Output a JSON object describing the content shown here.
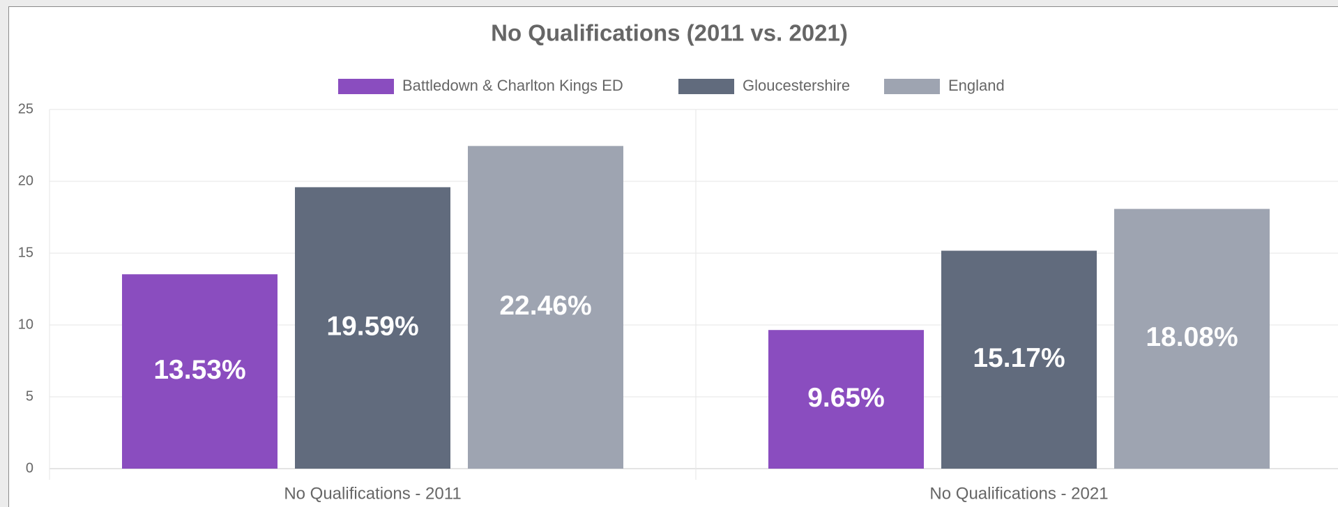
{
  "chart_data": {
    "type": "bar",
    "title": "No Qualifications (2011 vs. 2021)",
    "categories": [
      "No Qualifications - 2011",
      "No Qualifications - 2021"
    ],
    "series": [
      {
        "name": "Battledown & Charlton Kings ED",
        "color": "#8a4dbf",
        "values": [
          13.53,
          9.65
        ],
        "value_labels": [
          "13.53%",
          "9.65%"
        ]
      },
      {
        "name": "Gloucestershire",
        "color": "#616b7d",
        "values": [
          19.59,
          15.17
        ],
        "value_labels": [
          "19.59%",
          "15.17%"
        ]
      },
      {
        "name": "England",
        "color": "#9ea4b1",
        "values": [
          22.46,
          18.08
        ],
        "value_labels": [
          "22.46%",
          "18.08%"
        ]
      }
    ],
    "ylim": [
      0,
      25
    ],
    "yticks": [
      0,
      5,
      10,
      15,
      20,
      25
    ],
    "grid": true,
    "legend": "top"
  }
}
